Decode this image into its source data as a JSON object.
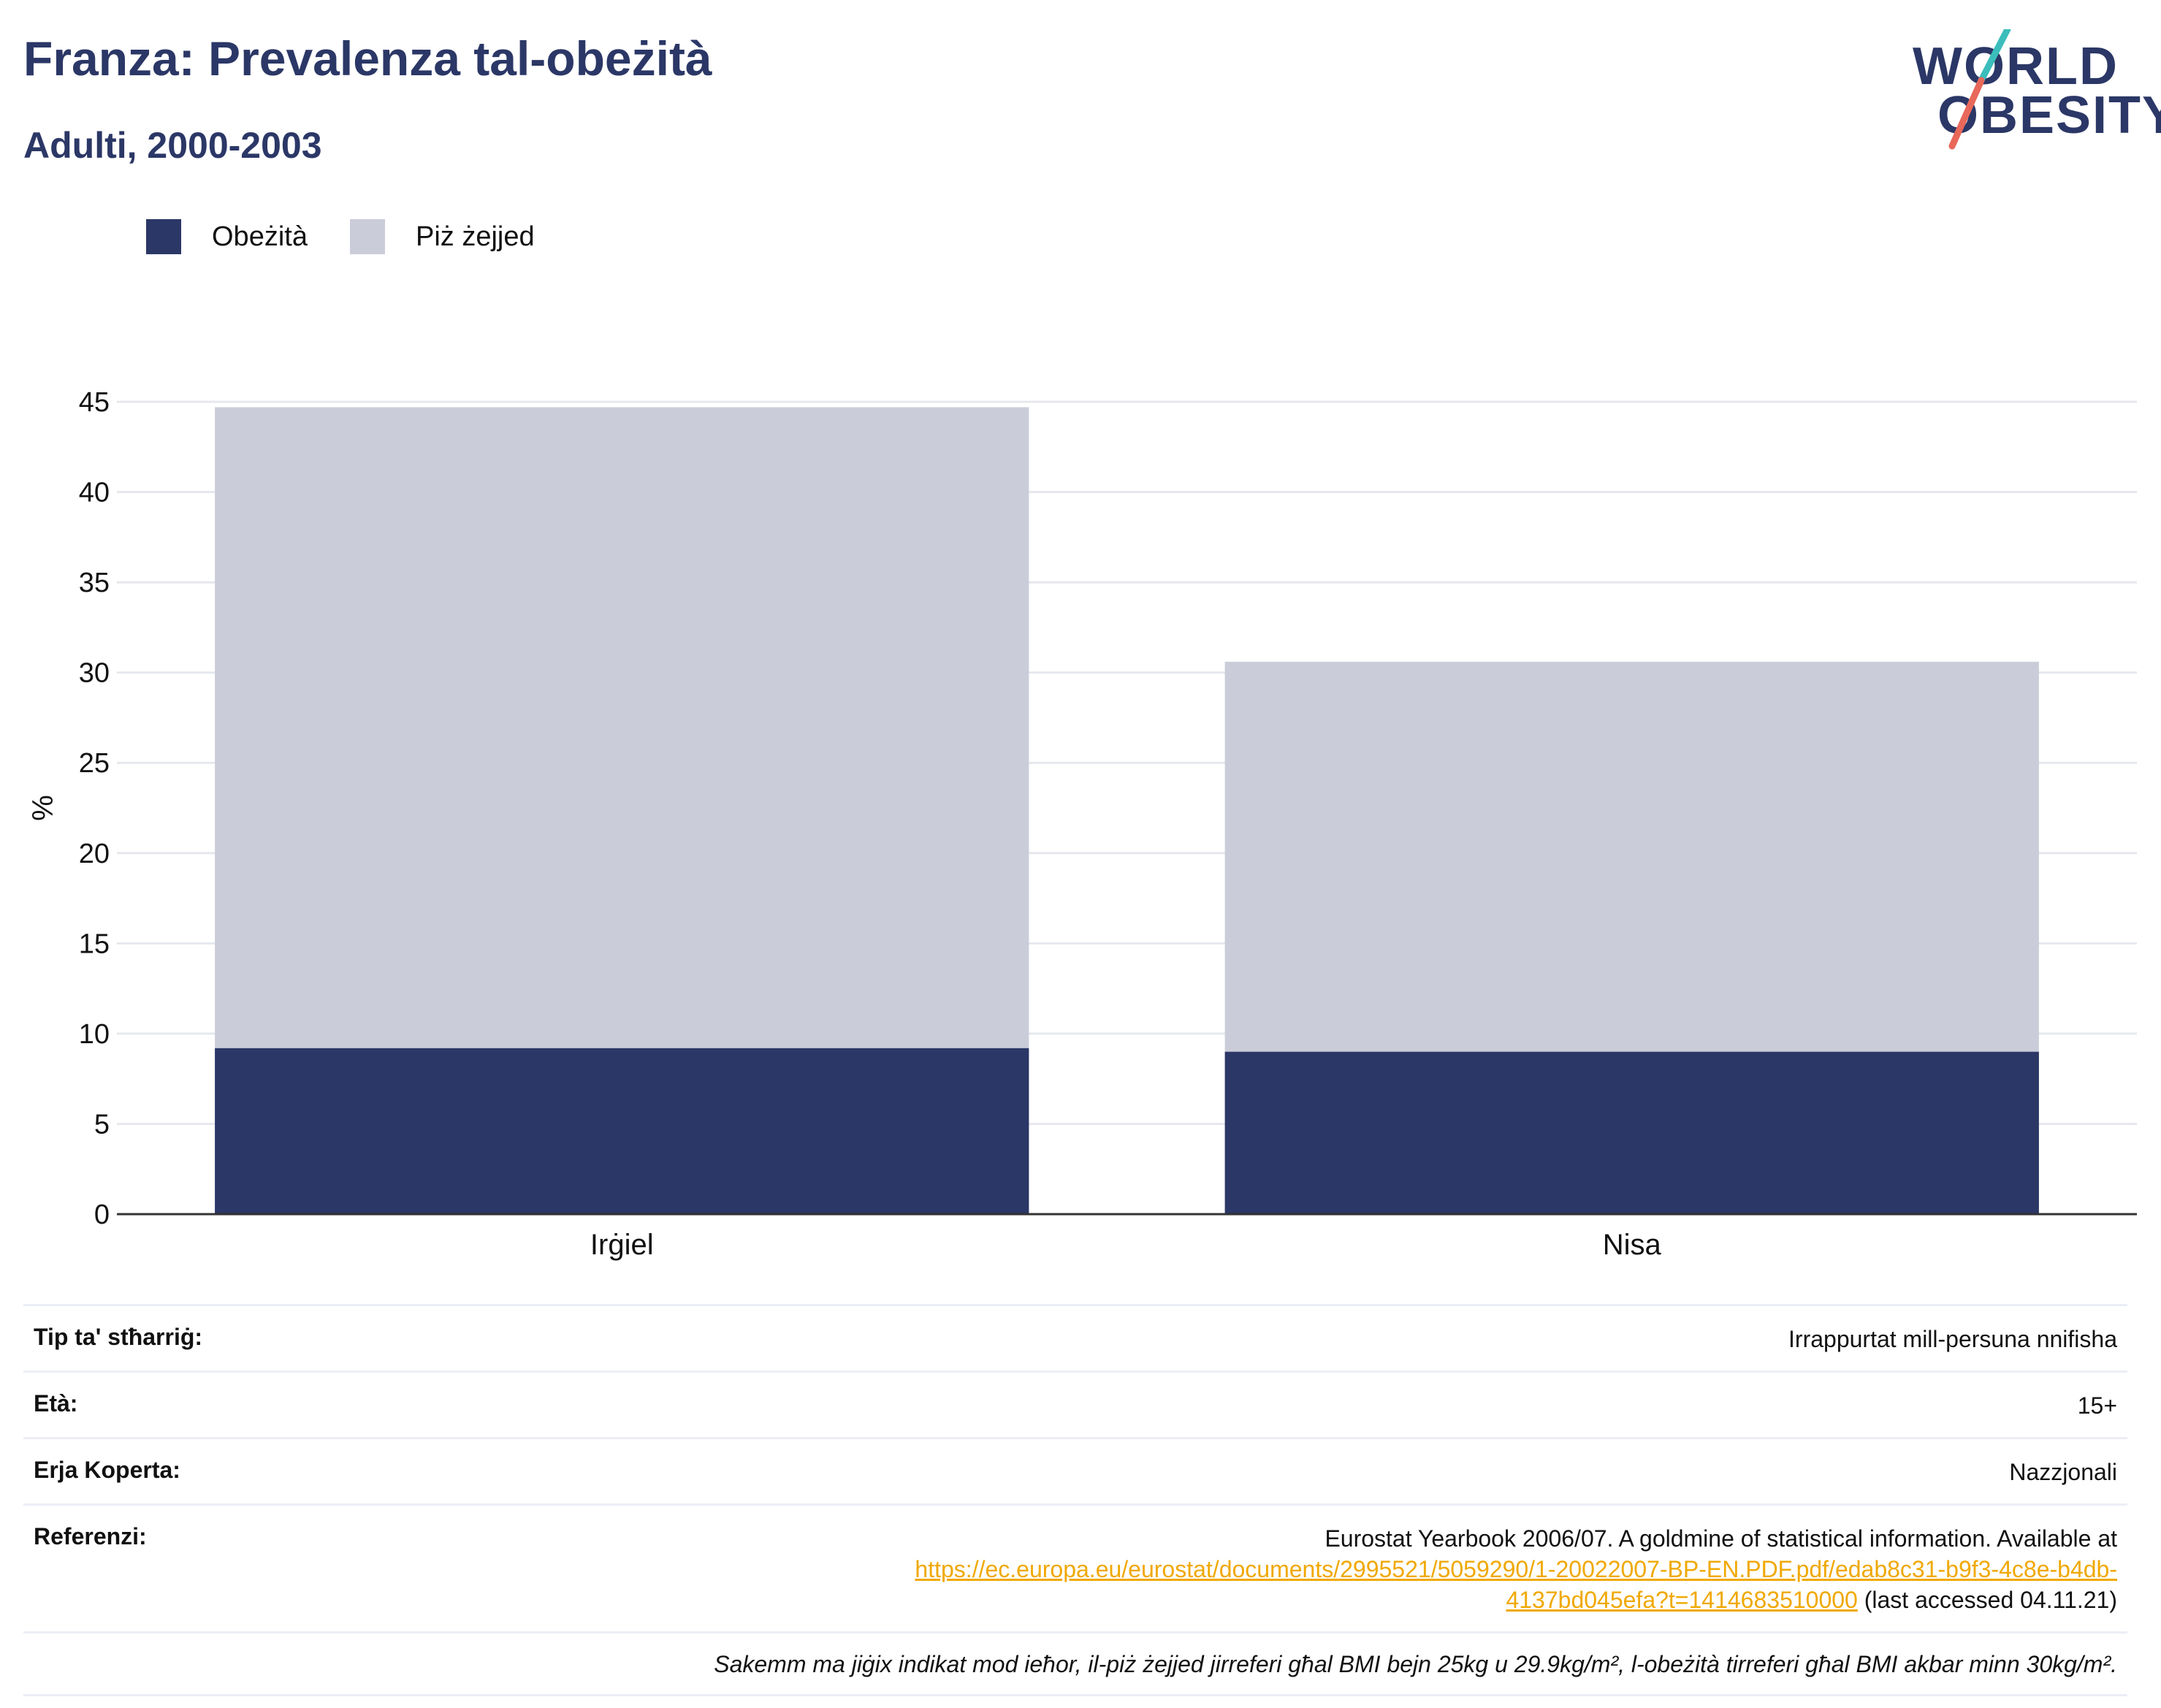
{
  "header": {
    "title": "Franza: Prevalenza tal-obeżità",
    "subtitle": "Adulti, 2000-2003"
  },
  "logo": {
    "line1": "WORLD",
    "line2": "OBESITY"
  },
  "colors": {
    "obesity": "#2b3766",
    "overweight": "#cacdd9",
    "accent_teal": "#3bbdbb",
    "accent_red": "#e8685a",
    "link": "#f0a800"
  },
  "chart_data": {
    "type": "bar",
    "stacked": true,
    "categories": [
      "Irġiel",
      "Nisa"
    ],
    "series": [
      {
        "name": "Obeżità",
        "values": [
          9.2,
          9.0
        ]
      },
      {
        "name": "Piż żejjed",
        "values": [
          35.5,
          21.6
        ]
      }
    ],
    "ylabel": "%",
    "ylim": [
      0,
      45
    ],
    "yticks": [
      0,
      5,
      10,
      15,
      20,
      25,
      30,
      35,
      40,
      45
    ],
    "grid": true,
    "legend": "top-left"
  },
  "info": {
    "survey_label": "Tip ta' stħarriġ:",
    "survey_value": "Irrappurtat mill-persuna nnifisha",
    "age_label": "Età:",
    "age_value": "15+",
    "coverage_label": "Erja Koperta:",
    "coverage_value": "Nazzjonali",
    "reference_label": "Referenzi:",
    "reference_text": "Eurostat Yearbook 2006/07. A goldmine of statistical information. Available at",
    "reference_url_1": "https://ec.europa.eu/eurostat/documents/2995521/5059290/1-20022007-BP-EN.PDF.pdf/edab8c31-b9f3-4c8e-b4db-",
    "reference_url_2": "4137bd045efa?t=1414683510000",
    "reference_accessed": " (last accessed 04.11.21)",
    "note": "Sakemm ma jiġix indikat mod ieħor, il-piż żejjed jirreferi għal BMI bejn 25kg u 29.9kg/m², l-obeżità tirreferi għal BMI akbar minn 30kg/m²."
  }
}
